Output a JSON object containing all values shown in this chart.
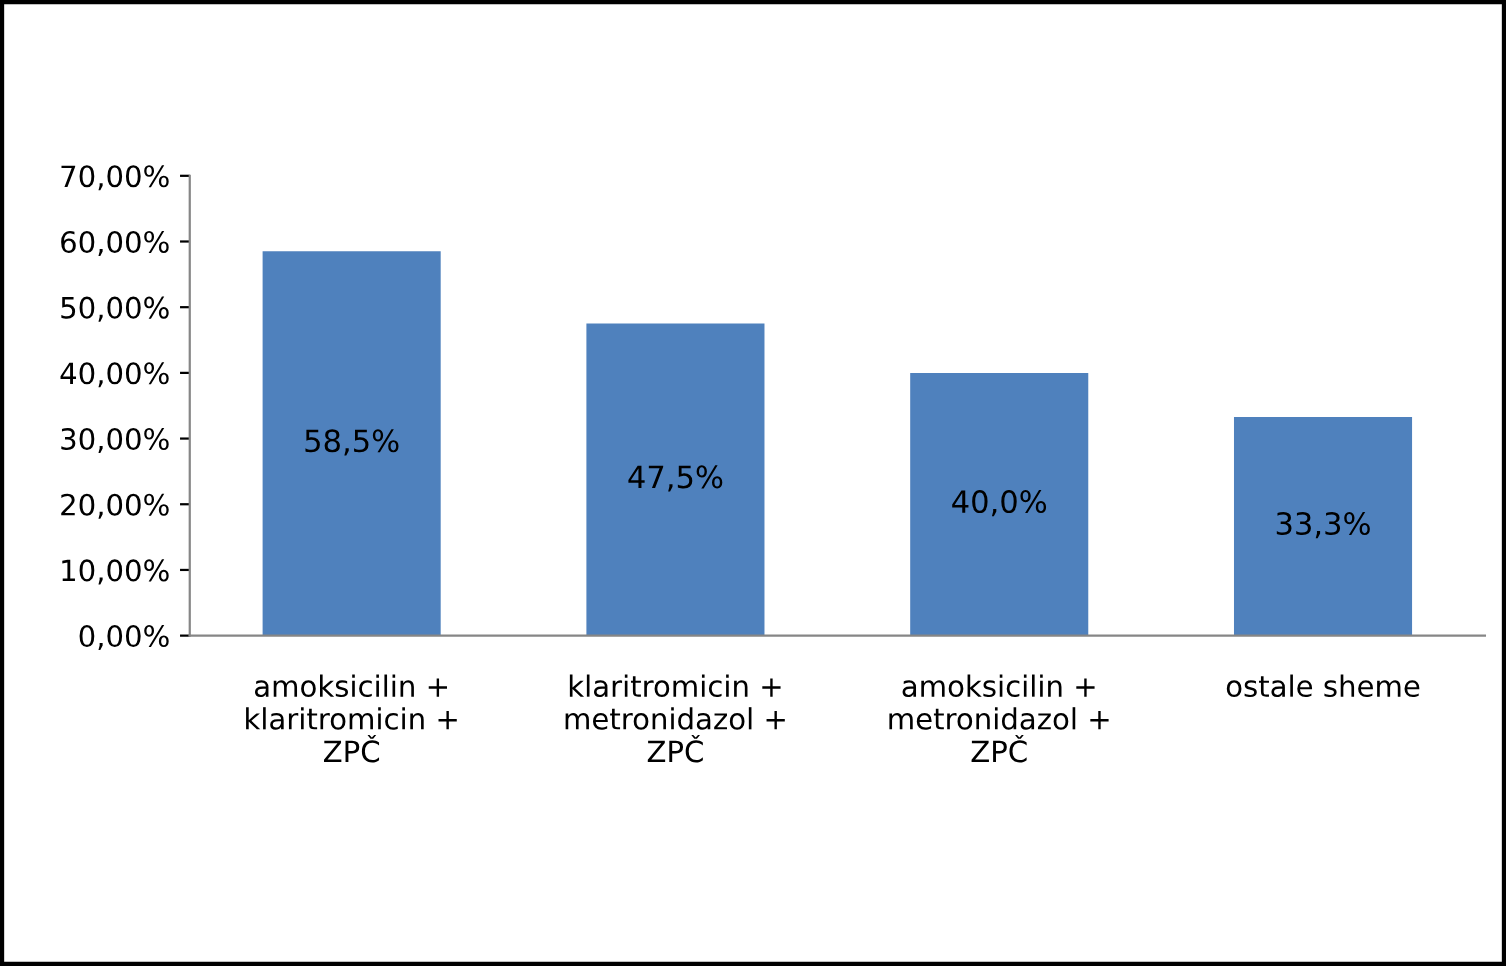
{
  "chart_data": {
    "type": "bar",
    "categories": [
      "amoksicilin +\nklaritromicin +\nZPČ",
      "klaritromicin +\nmetronidazol +\nZPČ",
      "amoksicilin +\nmetronidazol +\nZPČ",
      "ostale sheme"
    ],
    "values": [
      58.5,
      47.5,
      40.0,
      33.3
    ],
    "value_labels": [
      "58,5%",
      "47,5%",
      "40,0%",
      "33,3%"
    ],
    "color": "#4f81bd",
    "ylim": [
      0,
      70
    ],
    "yticks": [
      {
        "value": 0,
        "label": "0,00%"
      },
      {
        "value": 10,
        "label": "10,00%"
      },
      {
        "value": 20,
        "label": "20,00%"
      },
      {
        "value": 30,
        "label": "30,00%"
      },
      {
        "value": 40,
        "label": "40,00%"
      },
      {
        "value": 50,
        "label": "50,00%"
      },
      {
        "value": 60,
        "label": "60,00%"
      },
      {
        "value": 70,
        "label": "70,00%"
      }
    ],
    "grid": false,
    "legend": false
  }
}
